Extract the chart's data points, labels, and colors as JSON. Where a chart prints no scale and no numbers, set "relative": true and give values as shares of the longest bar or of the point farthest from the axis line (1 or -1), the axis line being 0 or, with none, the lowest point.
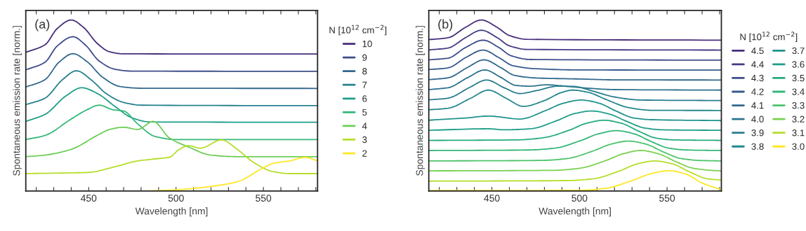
{
  "chart_data": [
    {
      "type": "line",
      "relative": true,
      "xlabel": "Wavelength [nm]",
      "ylabel": "Spontaneous emission rate [norm.]",
      "legend_title": "N [10$^{12}$ cm$^{−2}$]",
      "legend": "right",
      "annotations": [
        "(a)"
      ],
      "xlim": [
        414,
        581
      ],
      "xticks": [
        {
          "value": 420,
          "label": null
        },
        {
          "value": 430,
          "label": null
        },
        {
          "value": 440,
          "label": null
        },
        450,
        {
          "value": 460,
          "label": null
        },
        {
          "value": 470,
          "label": null
        },
        {
          "value": 480,
          "label": null
        },
        {
          "value": 490,
          "label": null
        },
        500,
        {
          "value": 510,
          "label": null
        },
        {
          "value": 520,
          "label": null
        },
        {
          "value": 530,
          "label": null
        },
        {
          "value": 540,
          "label": null
        },
        550,
        {
          "value": 560,
          "label": null
        },
        {
          "value": 570,
          "label": null
        },
        {
          "value": 580,
          "label": null
        }
      ],
      "series": [
        {
          "name": "10",
          "color": "#472d7b",
          "x": [
            414,
            425,
            432,
            440,
            447,
            455,
            462,
            470,
            581
          ],
          "values": [
            0.811,
            0.855,
            0.95,
            1.0,
            0.957,
            0.862,
            0.814,
            0.802,
            0.801
          ]
        },
        {
          "name": "9",
          "color": "#3e4c8a",
          "x": [
            414,
            425,
            432,
            441,
            448,
            456,
            465,
            475,
            581
          ],
          "values": [
            0.708,
            0.753,
            0.848,
            0.902,
            0.855,
            0.76,
            0.712,
            0.701,
            0.7
          ]
        },
        {
          "name": "8",
          "color": "#31688e",
          "x": [
            414,
            425,
            433,
            441,
            449,
            458,
            468,
            480,
            581
          ],
          "values": [
            0.608,
            0.651,
            0.753,
            0.803,
            0.757,
            0.665,
            0.611,
            0.601,
            0.6
          ]
        },
        {
          "name": "7",
          "color": "#26828e",
          "x": [
            414,
            425,
            435,
            443,
            452,
            460,
            470,
            480,
            581
          ],
          "values": [
            0.505,
            0.543,
            0.651,
            0.703,
            0.645,
            0.57,
            0.518,
            0.502,
            0.499
          ]
        },
        {
          "name": "6",
          "color": "#1f9e89",
          "x": [
            414,
            425,
            437,
            446,
            455,
            465,
            475,
            485,
            581
          ],
          "values": [
            0.407,
            0.448,
            0.556,
            0.604,
            0.57,
            0.495,
            0.427,
            0.404,
            0.402
          ]
        },
        {
          "name": "5",
          "color": "#35b779",
          "x": [
            414,
            425,
            440,
            449,
            456,
            464,
            470,
            478,
            488,
            500,
            581
          ],
          "values": [
            0.301,
            0.325,
            0.421,
            0.475,
            0.502,
            0.475,
            0.468,
            0.393,
            0.319,
            0.301,
            0.301
          ]
        },
        {
          "name": "4",
          "color": "#6ece58",
          "x": [
            414,
            425,
            440,
            455,
            462,
            470,
            478,
            487,
            496,
            507,
            520,
            535,
            581
          ],
          "values": [
            0.201,
            0.21,
            0.244,
            0.326,
            0.36,
            0.373,
            0.36,
            0.407,
            0.312,
            0.258,
            0.21,
            0.201,
            0.201
          ]
        },
        {
          "name": "3",
          "color": "#b5de2b",
          "x": [
            414,
            450,
            465,
            478,
            490,
            496,
            502,
            507,
            514,
            526,
            535,
            545,
            555,
            565,
            581
          ],
          "values": [
            0.102,
            0.109,
            0.142,
            0.176,
            0.19,
            0.197,
            0.244,
            0.265,
            0.251,
            0.299,
            0.244,
            0.163,
            0.115,
            0.102,
            0.102
          ]
        },
        {
          "name": "2",
          "color": "#fde725",
          "x": [
            483,
            500,
            520,
            535,
            550,
            556,
            565,
            574,
            581
          ],
          "values": [
            0.0,
            0.007,
            0.027,
            0.054,
            0.136,
            0.163,
            0.176,
            0.197,
            0.176
          ]
        }
      ]
    },
    {
      "type": "line",
      "relative": true,
      "xlabel": "Wavelength [nm]",
      "ylabel": "Spontaneous emission rate [norm.]",
      "legend_title": "N [10$^{12}$ cm$^{−2}$]",
      "legend": "right",
      "annotations": [
        "(b)"
      ],
      "xlim": [
        414,
        581
      ],
      "xticks": [
        {
          "value": 420,
          "label": null
        },
        {
          "value": 430,
          "label": null
        },
        {
          "value": 440,
          "label": null
        },
        450,
        {
          "value": 460,
          "label": null
        },
        {
          "value": 470,
          "label": null
        },
        {
          "value": 480,
          "label": null
        },
        {
          "value": 490,
          "label": null
        },
        500,
        {
          "value": 510,
          "label": null
        },
        {
          "value": 520,
          "label": null
        },
        {
          "value": 530,
          "label": null
        },
        {
          "value": 540,
          "label": null
        },
        550,
        {
          "value": 560,
          "label": null
        },
        {
          "value": 570,
          "label": null
        },
        {
          "value": 580,
          "label": null
        }
      ],
      "series": [
        {
          "name": "4.5",
          "color": "#472d7b",
          "x": [
            414,
            425,
            435,
            444,
            453,
            460,
            470,
            581
          ],
          "values": [
            0.885,
            0.896,
            0.957,
            1.0,
            0.957,
            0.909,
            0.887,
            0.882
          ]
        },
        {
          "name": "4.4",
          "color": "#443a83",
          "x": [
            414,
            425,
            435,
            444,
            453,
            460,
            470,
            581
          ],
          "values": [
            0.825,
            0.836,
            0.897,
            0.94,
            0.897,
            0.849,
            0.828,
            0.824
          ]
        },
        {
          "name": "4.3",
          "color": "#3e4c8a",
          "x": [
            414,
            425,
            435,
            445,
            454,
            461,
            472,
            581
          ],
          "values": [
            0.767,
            0.777,
            0.839,
            0.882,
            0.839,
            0.791,
            0.769,
            0.765
          ]
        },
        {
          "name": "4.2",
          "color": "#375a8c",
          "x": [
            414,
            425,
            435,
            445,
            454,
            462,
            475,
            500,
            581
          ],
          "values": [
            0.71,
            0.72,
            0.78,
            0.824,
            0.78,
            0.733,
            0.715,
            0.708,
            0.707
          ]
        },
        {
          "name": "4.1",
          "color": "#31688e",
          "x": [
            414,
            425,
            436,
            445.5,
            455,
            463,
            475,
            500,
            520,
            581
          ],
          "values": [
            0.651,
            0.662,
            0.722,
            0.767,
            0.722,
            0.676,
            0.661,
            0.655,
            0.65,
            0.649
          ]
        },
        {
          "name": "4.0",
          "color": "#2c728e",
          "x": [
            414,
            425,
            436,
            446,
            455,
            464,
            472,
            481,
            492,
            505,
            520,
            581
          ],
          "values": [
            0.593,
            0.604,
            0.662,
            0.708,
            0.665,
            0.617,
            0.613,
            0.621,
            0.613,
            0.601,
            0.593,
            0.59
          ]
        },
        {
          "name": "3.9",
          "color": "#287d8e",
          "x": [
            414,
            425,
            437,
            447,
            457,
            466,
            475,
            488,
            497,
            508,
            520,
            535,
            581
          ],
          "values": [
            0.533,
            0.543,
            0.604,
            0.649,
            0.604,
            0.57,
            0.586,
            0.613,
            0.611,
            0.583,
            0.55,
            0.532,
            0.529
          ]
        },
        {
          "name": "3.8",
          "color": "#24878e",
          "x": [
            414,
            425,
            438,
            448,
            458,
            468,
            480,
            490,
            496,
            505,
            515,
            528,
            541,
            581
          ],
          "values": [
            0.475,
            0.484,
            0.543,
            0.59,
            0.543,
            0.495,
            0.529,
            0.577,
            0.59,
            0.577,
            0.536,
            0.488,
            0.472,
            0.471
          ]
        },
        {
          "name": "3.7",
          "color": "#1f928c",
          "x": [
            414,
            435,
            448,
            466,
            481,
            491,
            501,
            511,
            521,
            531,
            541,
            581
          ],
          "values": [
            0.414,
            0.427,
            0.438,
            0.421,
            0.472,
            0.514,
            0.532,
            0.514,
            0.467,
            0.427,
            0.417,
            0.412
          ]
        },
        {
          "name": "3.6",
          "color": "#1f9e89",
          "x": [
            414,
            448,
            457,
            472,
            487,
            497,
            507,
            517,
            527,
            537,
            547,
            581
          ],
          "values": [
            0.355,
            0.364,
            0.358,
            0.364,
            0.411,
            0.452,
            0.468,
            0.45,
            0.407,
            0.369,
            0.358,
            0.355
          ]
        },
        {
          "name": "3.5",
          "color": "#25ab82",
          "x": [
            414,
            464,
            479,
            494,
            504,
            514,
            524,
            534,
            544,
            554,
            581
          ],
          "values": [
            0.296,
            0.299,
            0.311,
            0.355,
            0.396,
            0.414,
            0.396,
            0.349,
            0.309,
            0.299,
            0.296
          ]
        },
        {
          "name": "3.4",
          "color": "#35b779",
          "x": [
            414,
            471,
            486,
            501,
            511,
            521,
            531,
            541,
            551,
            561,
            581
          ],
          "values": [
            0.237,
            0.24,
            0.251,
            0.296,
            0.335,
            0.353,
            0.335,
            0.289,
            0.251,
            0.24,
            0.237
          ]
        },
        {
          "name": "3.3",
          "color": "#4ec36b",
          "x": [
            414,
            478,
            493,
            508,
            518,
            528,
            538,
            548,
            558,
            568,
            581
          ],
          "values": [
            0.176,
            0.179,
            0.19,
            0.235,
            0.274,
            0.292,
            0.274,
            0.228,
            0.19,
            0.179,
            0.176
          ]
        },
        {
          "name": "3.2",
          "color": "#7ad151",
          "x": [
            414,
            485,
            500,
            515,
            525,
            535,
            545,
            555,
            565,
            575,
            581
          ],
          "values": [
            0.118,
            0.121,
            0.133,
            0.178,
            0.218,
            0.237,
            0.218,
            0.172,
            0.133,
            0.121,
            0.118
          ]
        },
        {
          "name": "3.1",
          "color": "#b5de2b",
          "x": [
            414,
            493,
            508,
            523,
            533,
            543,
            553,
            563,
            573,
            581
          ],
          "values": [
            0.058,
            0.061,
            0.072,
            0.118,
            0.159,
            0.176,
            0.159,
            0.111,
            0.072,
            0.064
          ]
        },
        {
          "name": "3.0",
          "color": "#fde725",
          "x": [
            414,
            500,
            515,
            530,
            541,
            551,
            561,
            570,
            581
          ],
          "values": [
            0.003,
            0.004,
            0.016,
            0.061,
            0.102,
            0.119,
            0.098,
            0.047,
            0.007
          ]
        }
      ]
    }
  ]
}
